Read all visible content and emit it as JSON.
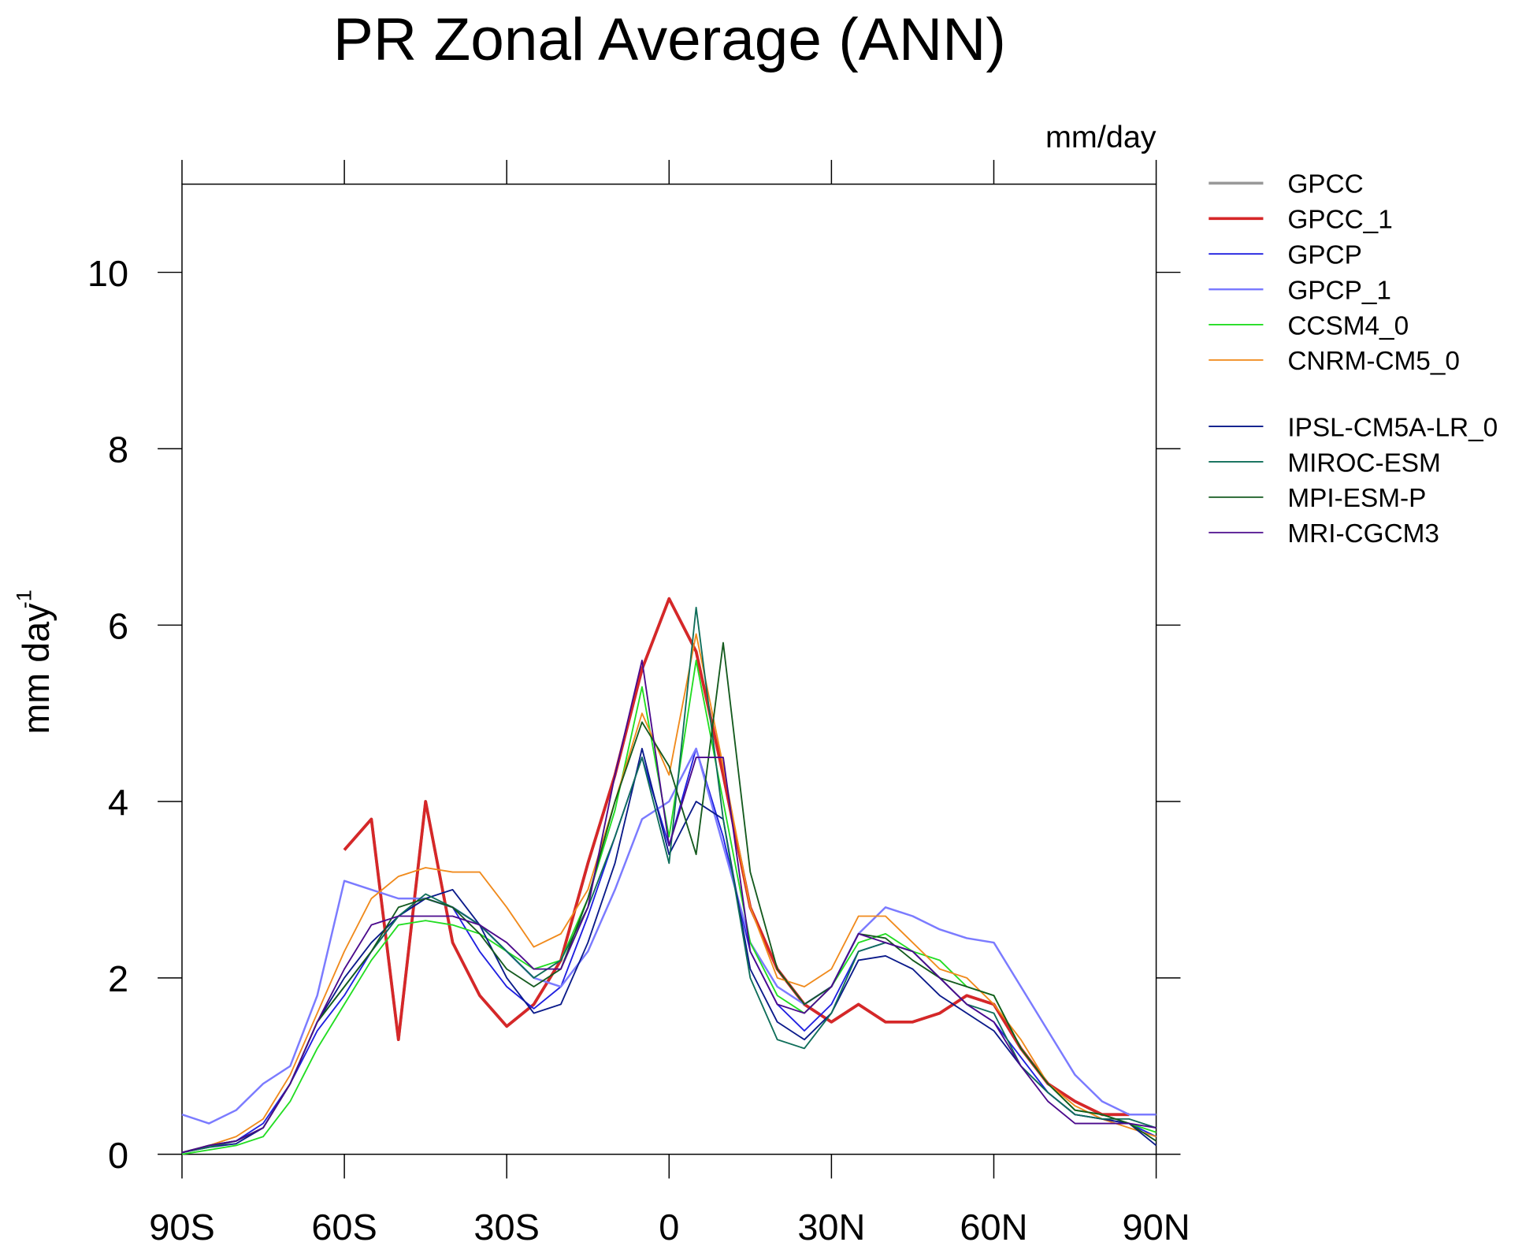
{
  "chart_data": {
    "type": "line",
    "title": "PR Zonal Average (ANN)",
    "units": "mm/day",
    "y_label": "mm day",
    "y_label_superscript": "-1",
    "x": [
      -90,
      -85,
      -80,
      -75,
      -70,
      -65,
      -60,
      -55,
      -50,
      -45,
      -40,
      -35,
      -30,
      -25,
      -20,
      -15,
      -10,
      -5,
      0,
      5,
      10,
      15,
      20,
      25,
      30,
      35,
      40,
      45,
      50,
      55,
      60,
      65,
      70,
      75,
      80,
      85,
      90
    ],
    "xlim": [
      -90,
      90
    ],
    "xticks": [
      {
        "value": -90,
        "label": "90S"
      },
      {
        "value": -60,
        "label": "60S"
      },
      {
        "value": -30,
        "label": "30S"
      },
      0,
      {
        "value": 30,
        "label": "30N"
      },
      {
        "value": 60,
        "label": "60N"
      },
      {
        "value": 90,
        "label": "90N"
      }
    ],
    "ylim": [
      0,
      11
    ],
    "yticks": [
      0,
      2,
      4,
      6,
      8,
      10
    ],
    "series": [
      {
        "name": "GPCC",
        "color": "#999999",
        "width": 3,
        "values": [
          null,
          null,
          null,
          null,
          null,
          null,
          3.45,
          3.8,
          1.3,
          4.0,
          2.4,
          1.8,
          1.45,
          1.7,
          2.2,
          3.3,
          4.3,
          5.5,
          6.3,
          5.7,
          4.3,
          2.8,
          2.1,
          1.7,
          1.5,
          1.7,
          1.5,
          1.5,
          1.6,
          1.8,
          1.7,
          1.2,
          0.8,
          0.6,
          0.45,
          0.45,
          null
        ]
      },
      {
        "name": "GPCC_1",
        "color": "#d62728",
        "width": 3,
        "values": [
          null,
          null,
          null,
          null,
          null,
          null,
          3.45,
          3.8,
          1.3,
          4.0,
          2.4,
          1.8,
          1.45,
          1.7,
          2.2,
          3.3,
          4.3,
          5.5,
          6.3,
          5.7,
          4.3,
          2.8,
          2.1,
          1.7,
          1.5,
          1.7,
          1.5,
          1.5,
          1.6,
          1.8,
          1.7,
          1.2,
          0.8,
          0.6,
          0.45,
          0.45,
          null
        ]
      },
      {
        "name": "GPCP",
        "color": "#1f1fe0",
        "width": 1.5,
        "values": [
          0.02,
          0.1,
          0.15,
          0.35,
          0.8,
          1.4,
          1.8,
          2.3,
          2.7,
          2.9,
          2.8,
          2.3,
          1.9,
          1.65,
          1.9,
          2.7,
          3.6,
          4.5,
          3.5,
          4.6,
          3.6,
          2.3,
          1.7,
          1.4,
          1.7,
          2.3,
          2.4,
          2.3,
          2.0,
          1.7,
          1.5,
          1.1,
          0.7,
          0.45,
          0.4,
          0.35,
          0.2
        ]
      },
      {
        "name": "GPCP_1",
        "color": "#7b7bff",
        "width": 2,
        "values": [
          0.45,
          0.35,
          0.5,
          0.8,
          1.0,
          1.8,
          3.1,
          3.0,
          2.9,
          2.9,
          2.8,
          2.6,
          2.3,
          2.0,
          1.9,
          2.3,
          3.0,
          3.8,
          4.0,
          4.6,
          3.5,
          2.4,
          1.9,
          1.7,
          1.9,
          2.5,
          2.8,
          2.7,
          2.55,
          2.45,
          2.4,
          1.9,
          1.4,
          0.9,
          0.6,
          0.45,
          0.45
        ]
      },
      {
        "name": "CCSM4_0",
        "color": "#22dd22",
        "width": 1.5,
        "values": [
          0,
          0.05,
          0.1,
          0.2,
          0.6,
          1.2,
          1.7,
          2.2,
          2.6,
          2.65,
          2.6,
          2.5,
          2.3,
          2.1,
          2.2,
          2.9,
          3.9,
          5.3,
          3.6,
          5.6,
          4.0,
          2.4,
          1.8,
          1.6,
          1.9,
          2.4,
          2.5,
          2.3,
          2.2,
          1.9,
          1.8,
          1.2,
          0.8,
          0.5,
          0.45,
          0.35,
          0.25
        ]
      },
      {
        "name": "CNRM-CM5_0",
        "color": "#f08a1c",
        "width": 1.5,
        "values": [
          0.02,
          0.1,
          0.2,
          0.4,
          0.9,
          1.6,
          2.3,
          2.9,
          3.15,
          3.25,
          3.2,
          3.2,
          2.8,
          2.35,
          2.5,
          3.0,
          4.0,
          5.0,
          4.3,
          5.9,
          4.4,
          2.8,
          2.0,
          1.9,
          2.1,
          2.7,
          2.7,
          2.4,
          2.1,
          2.0,
          1.7,
          1.3,
          0.8,
          0.55,
          0.4,
          0.3,
          0.2
        ]
      },
      {
        "name": "IPSL-CM5A-LR_0",
        "color": "#0a1a8a",
        "width": 1.5,
        "values": [
          0.02,
          0.08,
          0.12,
          0.3,
          0.8,
          1.5,
          2.0,
          2.4,
          2.7,
          2.9,
          3.0,
          2.6,
          2.0,
          1.6,
          1.7,
          2.4,
          3.3,
          4.6,
          3.4,
          4.0,
          3.8,
          2.1,
          1.5,
          1.3,
          1.6,
          2.2,
          2.25,
          2.1,
          1.8,
          1.6,
          1.4,
          1.0,
          0.7,
          0.45,
          0.4,
          0.35,
          0.1
        ]
      },
      {
        "name": "MIROC-ESM",
        "color": "#0f6e5a",
        "width": 1.5,
        "values": [
          0.02,
          0.08,
          0.15,
          0.3,
          0.8,
          1.5,
          1.9,
          2.3,
          2.7,
          2.95,
          2.8,
          2.6,
          2.3,
          2.0,
          2.2,
          2.8,
          3.6,
          4.5,
          3.3,
          6.2,
          3.8,
          2.0,
          1.3,
          1.2,
          1.6,
          2.3,
          2.4,
          2.3,
          2.0,
          1.7,
          1.6,
          1.0,
          0.7,
          0.45,
          0.4,
          0.4,
          0.3
        ]
      },
      {
        "name": "MPI-ESM-P",
        "color": "#145a1e",
        "width": 1.5,
        "values": [
          0.02,
          0.1,
          0.15,
          0.3,
          0.8,
          1.5,
          1.9,
          2.3,
          2.8,
          2.9,
          2.8,
          2.5,
          2.1,
          1.9,
          2.1,
          2.9,
          4.0,
          4.9,
          4.4,
          3.4,
          5.8,
          3.2,
          2.1,
          1.7,
          1.9,
          2.5,
          2.45,
          2.2,
          2.0,
          1.9,
          1.8,
          1.2,
          0.8,
          0.5,
          0.45,
          0.35,
          0.15
        ]
      },
      {
        "name": "MRI-CGCM3",
        "color": "#4b0a8c",
        "width": 1.5,
        "values": [
          0.02,
          0.1,
          0.15,
          0.3,
          0.8,
          1.5,
          2.1,
          2.6,
          2.7,
          2.7,
          2.7,
          2.6,
          2.4,
          2.1,
          2.1,
          2.8,
          4.3,
          5.6,
          3.5,
          4.5,
          4.5,
          2.3,
          1.7,
          1.6,
          1.9,
          2.5,
          2.4,
          2.3,
          2.0,
          1.7,
          1.5,
          1.0,
          0.6,
          0.35,
          0.35,
          0.35,
          0.3
        ]
      }
    ]
  }
}
